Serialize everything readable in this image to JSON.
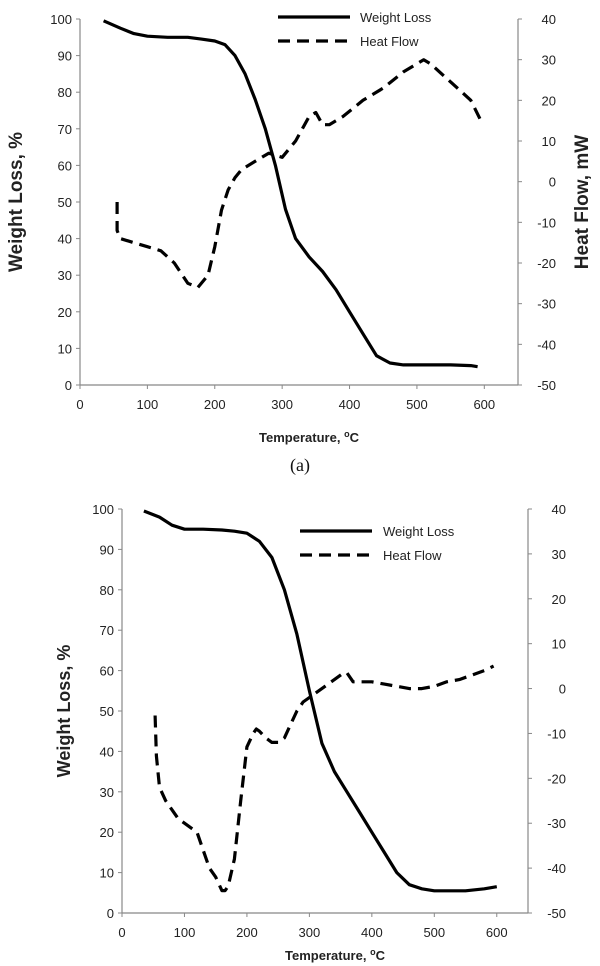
{
  "chart_data": [
    {
      "type": "line",
      "panel_label": "(a)",
      "xlabel": "Temperature, ",
      "xlabel_sup": "o",
      "xlabel_unit": "C",
      "ylabel": "Weight Loss, %",
      "y2label": "Heat Flow, mW",
      "xlim": [
        0,
        650
      ],
      "ylim": [
        0,
        100
      ],
      "y2lim": [
        -50,
        40
      ],
      "x_ticks": [
        "0",
        "100",
        "200",
        "300",
        "400",
        "500",
        "600"
      ],
      "y_ticks": [
        "0",
        "10",
        "20",
        "30",
        "40",
        "50",
        "60",
        "70",
        "80",
        "90",
        "100"
      ],
      "y2_ticks": [
        "-50",
        "-40",
        "-30",
        "-20",
        "-10",
        "0",
        "10",
        "20",
        "30",
        "40"
      ],
      "legend_position": "top-center",
      "grid": false,
      "series": [
        {
          "name": "Weight Loss",
          "axis": "left",
          "style": "solid",
          "x": [
            35,
            60,
            80,
            100,
            130,
            160,
            180,
            200,
            215,
            230,
            245,
            260,
            275,
            290,
            305,
            320,
            340,
            360,
            380,
            400,
            420,
            440,
            460,
            480,
            500,
            520,
            550,
            580,
            590
          ],
          "y": [
            99.5,
            97.5,
            96,
            95.3,
            95,
            95,
            94.5,
            94,
            93,
            90,
            85,
            78,
            70,
            60,
            48,
            40,
            35,
            31,
            26,
            20,
            14,
            8,
            6,
            5.5,
            5.5,
            5.5,
            5.5,
            5.3,
            5
          ]
        },
        {
          "name": "Heat Flow",
          "axis": "right",
          "style": "dashed",
          "x": [
            55,
            55,
            60,
            80,
            100,
            120,
            140,
            160,
            175,
            190,
            200,
            210,
            220,
            230,
            240,
            260,
            280,
            300,
            320,
            340,
            350,
            360,
            370,
            390,
            420,
            450,
            480,
            510,
            520,
            540,
            560,
            580,
            595
          ],
          "y": [
            -5,
            -12,
            -14,
            -15,
            -16,
            -17,
            -20,
            -25,
            -26,
            -23,
            -16,
            -7,
            -2,
            1,
            3,
            5,
            7,
            6,
            10,
            16,
            17,
            14,
            14,
            16,
            20,
            23,
            27,
            30,
            29,
            26,
            23,
            20,
            15
          ]
        }
      ]
    },
    {
      "type": "line",
      "xlabel": "Temperature, ",
      "xlabel_sup": "o",
      "xlabel_unit": "C",
      "ylabel": "Weight Loss, %",
      "y2label": "",
      "xlim": [
        0,
        650
      ],
      "ylim": [
        0,
        100
      ],
      "y2lim": [
        -50,
        40
      ],
      "x_ticks": [
        "0",
        "100",
        "200",
        "300",
        "400",
        "500",
        "600"
      ],
      "y_ticks": [
        "0",
        "10",
        "20",
        "30",
        "40",
        "50",
        "60",
        "70",
        "80",
        "90",
        "100"
      ],
      "y2_ticks": [
        "-50",
        "-40",
        "-30",
        "-20",
        "-10",
        "0",
        "10",
        "20",
        "30",
        "40"
      ],
      "legend_position": "top-right",
      "grid": false,
      "series": [
        {
          "name": "Weight Loss",
          "axis": "left",
          "style": "solid",
          "x": [
            35,
            60,
            80,
            100,
            130,
            160,
            180,
            200,
            220,
            240,
            260,
            280,
            300,
            320,
            340,
            360,
            380,
            400,
            420,
            440,
            460,
            480,
            500,
            520,
            550,
            580,
            600
          ],
          "y": [
            99.5,
            98,
            96,
            95,
            95,
            94.8,
            94.5,
            94,
            92,
            88,
            80,
            69,
            55,
            42,
            35,
            30,
            25,
            20,
            15,
            10,
            7,
            6,
            5.5,
            5.5,
            5.5,
            6,
            6.5
          ]
        },
        {
          "name": "Heat Flow",
          "axis": "right",
          "style": "dashed",
          "x": [
            53,
            55,
            60,
            70,
            80,
            90,
            100,
            110,
            120,
            130,
            140,
            150,
            160,
            165,
            170,
            180,
            190,
            200,
            210,
            215,
            220,
            230,
            240,
            250,
            260,
            270,
            280,
            290,
            300,
            310,
            320,
            330,
            340,
            350,
            355,
            360,
            370,
            380,
            400,
            420,
            440,
            460,
            480,
            500,
            520,
            540,
            560,
            580,
            595
          ],
          "y": [
            -6,
            -15,
            -22,
            -25,
            -27,
            -29,
            -30,
            -31,
            -32,
            -36,
            -40,
            -42,
            -45,
            -45,
            -44,
            -38,
            -25,
            -13,
            -10,
            -9,
            -9.5,
            -11,
            -12,
            -12,
            -11,
            -8,
            -5,
            -3,
            -2,
            -1,
            0,
            1,
            2,
            3,
            3.5,
            3.5,
            1.5,
            1.5,
            1.5,
            1,
            0.5,
            0,
            0,
            0.5,
            1.5,
            2,
            3,
            4,
            5
          ]
        }
      ]
    }
  ]
}
